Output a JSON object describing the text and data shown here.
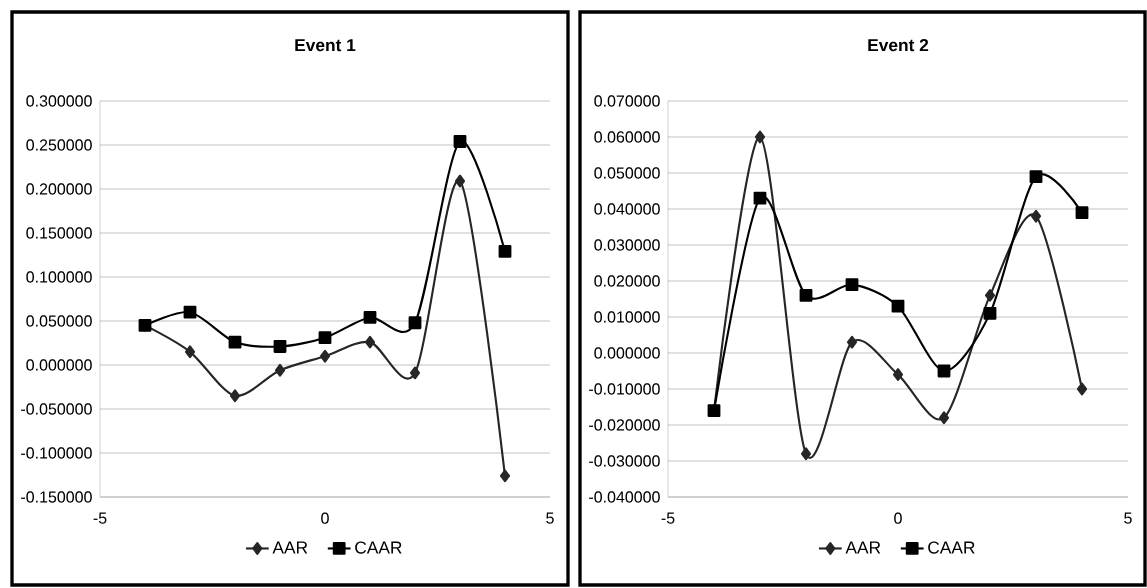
{
  "chart_data": [
    {
      "type": "line",
      "title": "Event 1",
      "x": [
        -4,
        -3,
        -2,
        -1,
        0,
        1,
        2,
        3,
        4
      ],
      "series": [
        {
          "name": "AAR",
          "color": "#262626",
          "marker": "diamond",
          "values": [
            0.045,
            0.015,
            -0.035,
            -0.006,
            0.01,
            0.026,
            -0.009,
            0.209,
            -0.126
          ]
        },
        {
          "name": "CAAR",
          "color": "#000000",
          "marker": "square",
          "values": [
            0.045,
            0.06,
            0.026,
            0.021,
            0.031,
            0.054,
            0.048,
            0.254,
            0.129
          ]
        }
      ],
      "xlim": [
        -5,
        5
      ],
      "xticks": [
        -5,
        0,
        5
      ],
      "ylim": [
        -0.15,
        0.3
      ],
      "yticks": [
        {
          "value": -0.15,
          "label": "-0.150000"
        },
        {
          "value": -0.1,
          "label": "-0.100000"
        },
        {
          "value": -0.05,
          "label": "-0.050000"
        },
        {
          "value": 0,
          "label": "0.000000"
        },
        {
          "value": 0.05,
          "label": "0.050000"
        },
        {
          "value": 0.1,
          "label": "0.100000"
        },
        {
          "value": 0.15,
          "label": "0.150000"
        },
        {
          "value": 0.2,
          "label": "0.200000"
        },
        {
          "value": 0.25,
          "label": "0.250000"
        },
        {
          "value": 0.3,
          "label": "0.300000"
        }
      ],
      "grid": "y",
      "legend": "bottom"
    },
    {
      "type": "line",
      "title": "Event 2",
      "x": [
        -4,
        -3,
        -2,
        -1,
        0,
        1,
        2,
        3,
        4
      ],
      "series": [
        {
          "name": "AAR",
          "color": "#262626",
          "marker": "diamond",
          "values": [
            -0.016,
            0.06,
            -0.028,
            0.003,
            -0.006,
            -0.018,
            0.016,
            0.038,
            -0.01
          ]
        },
        {
          "name": "CAAR",
          "color": "#000000",
          "marker": "square",
          "values": [
            -0.016,
            0.043,
            0.016,
            0.019,
            0.013,
            -0.005,
            0.011,
            0.049,
            0.039
          ]
        }
      ],
      "xlim": [
        -5,
        5
      ],
      "xticks": [
        -5,
        0,
        5
      ],
      "ylim": [
        -0.04,
        0.07
      ],
      "yticks": [
        {
          "value": -0.04,
          "label": "-0.040000"
        },
        {
          "value": -0.03,
          "label": "-0.030000"
        },
        {
          "value": -0.02,
          "label": "-0.020000"
        },
        {
          "value": -0.01,
          "label": "-0.010000"
        },
        {
          "value": 0,
          "label": "0.000000"
        },
        {
          "value": 0.01,
          "label": "0.010000"
        },
        {
          "value": 0.02,
          "label": "0.020000"
        },
        {
          "value": 0.03,
          "label": "0.030000"
        },
        {
          "value": 0.04,
          "label": "0.040000"
        },
        {
          "value": 0.05,
          "label": "0.050000"
        },
        {
          "value": 0.06,
          "label": "0.060000"
        },
        {
          "value": 0.07,
          "label": "0.070000"
        }
      ],
      "grid": "y",
      "legend": "bottom"
    }
  ]
}
